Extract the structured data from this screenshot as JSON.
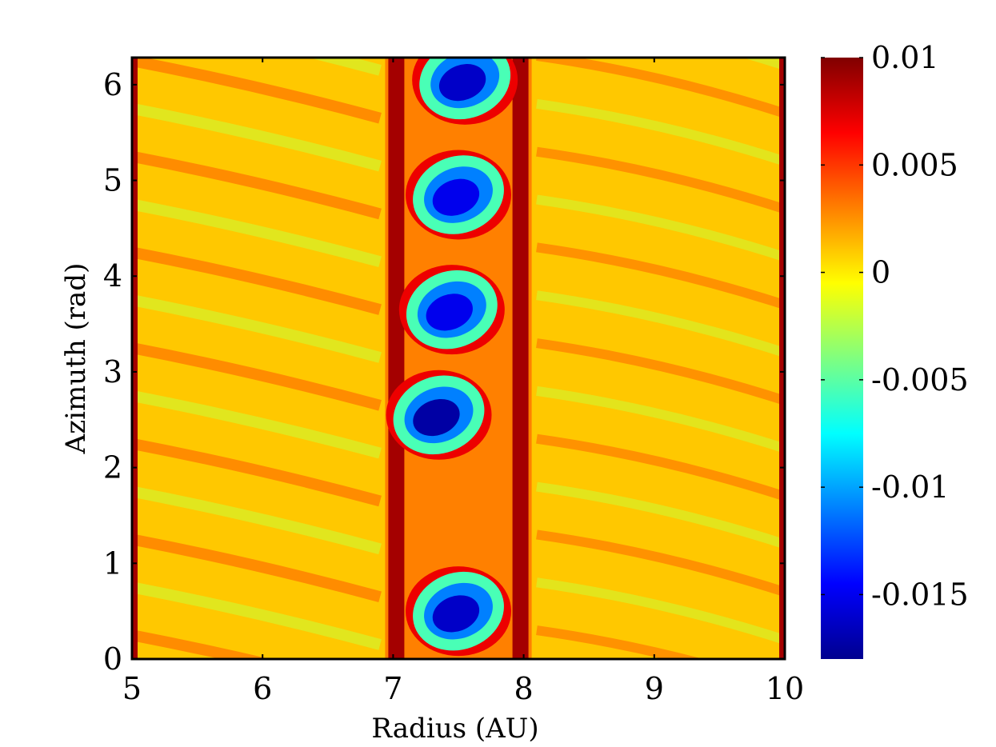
{
  "chart_data": {
    "type": "heatmap",
    "title": "",
    "xlabel": "Radius (AU)",
    "ylabel": "Azimuth (rad)",
    "xlim": [
      5,
      10
    ],
    "ylim": [
      0,
      6.283
    ],
    "x_ticks": [
      5,
      6,
      7,
      8,
      9,
      10
    ],
    "x_tick_labels": [
      "5",
      "6",
      "7",
      "8",
      "9",
      "10"
    ],
    "y_ticks": [
      0,
      1,
      2,
      3,
      4,
      5,
      6
    ],
    "y_tick_labels": [
      "0",
      "1",
      "2",
      "3",
      "4",
      "5",
      "6"
    ],
    "colorbar": {
      "colormap": "jet",
      "range": [
        -0.018,
        0.01
      ],
      "ticks": [
        0.01,
        0.005,
        0,
        -0.005,
        -0.01,
        -0.015
      ],
      "tick_labels": [
        "0.01",
        "0.005",
        "0",
        "-0.005",
        "-0.01",
        "-0.015"
      ]
    },
    "vortices": [
      {
        "r": 7.5,
        "phi": 0.5,
        "value": -0.016
      },
      {
        "r": 7.35,
        "phi": 2.55,
        "value": -0.017
      },
      {
        "r": 7.45,
        "phi": 3.65,
        "value": -0.015
      },
      {
        "r": 7.5,
        "phi": 4.85,
        "value": -0.015
      },
      {
        "r": 7.55,
        "phi": 6.05,
        "value": -0.016
      }
    ],
    "ring": {
      "r_inner": 7.0,
      "r_outer": 8.0,
      "edge_value": 0.009
    },
    "background_value": 0.001
  }
}
